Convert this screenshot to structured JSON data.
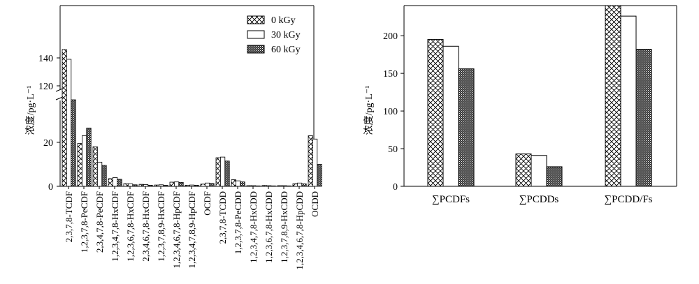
{
  "chart_data": [
    {
      "type": "bar",
      "ylabel": "浓度/pg·L⁻¹",
      "axis_break": true,
      "yticks_lower": [
        0,
        20
      ],
      "yticks_upper": [
        120,
        140
      ],
      "legend": {
        "position": "top-right",
        "entries": [
          "0 kGy",
          "30 kGy",
          "60 kGy"
        ]
      },
      "categories": [
        "2,3,7,8-TCDF",
        "1,2,3,7,8-PeCDF",
        "2,3,4,7,8-PeCDF",
        "1,2,3,4,7,8-HxCDF",
        "1,2,3,6,7,8-HxCDF",
        "2,3,4,6,7,8-HxCDF",
        "1,2,3,7,8,9-HxCDF",
        "1,2,3,4,6,7,8-HpCDF",
        "1,2,3,4,7,8,9-HpCDF",
        "OCDF",
        "2,3,7,8-TCDD",
        "1,2,3,7,8-PeCDD",
        "1,2,3,4,7,8-HxCDD",
        "1,2,3,6,7,8-HxCDD",
        "1,2,3,7,8,9-HxCDD",
        "1,2,3,4,6,7,8-HpCDD",
        "OCDD"
      ],
      "series": [
        {
          "name": "0 kGy",
          "pattern": "crosshatch",
          "values": [
            146,
            19.5,
            18,
            3.5,
            1.2,
            0.9,
            0.6,
            1.9,
            0.5,
            1.0,
            13,
            3.0,
            0.3,
            0.4,
            0.3,
            1.2,
            23
          ]
        },
        {
          "name": "30 kGy",
          "pattern": "empty",
          "values": [
            139,
            23,
            11,
            4,
            1.1,
            0.8,
            0.7,
            2.0,
            0.6,
            1.5,
            13.3,
            2.5,
            0.3,
            0.3,
            0.3,
            1.5,
            21.5
          ]
        },
        {
          "name": "60 kGy",
          "pattern": "dense",
          "values": [
            110,
            26.5,
            9.5,
            3.2,
            0.7,
            0.5,
            0.5,
            1.8,
            0.5,
            1.3,
            11.5,
            2.0,
            0.2,
            0.2,
            0.2,
            1.1,
            10
          ]
        }
      ]
    },
    {
      "type": "bar",
      "ylabel": "浓度/pg·L⁻¹",
      "ylim": [
        0,
        240
      ],
      "yticks": [
        0,
        50,
        100,
        150,
        200
      ],
      "categories": [
        "∑PCDFs",
        "∑PCDDs",
        "∑PCDD/Fs"
      ],
      "series": [
        {
          "name": "0 kGy",
          "pattern": "crosshatch",
          "values": [
            195,
            43,
            241
          ]
        },
        {
          "name": "30 kGy",
          "pattern": "empty",
          "values": [
            186,
            41,
            226
          ]
        },
        {
          "name": "60 kGy",
          "pattern": "dense",
          "values": [
            156,
            26,
            182
          ]
        }
      ]
    }
  ]
}
